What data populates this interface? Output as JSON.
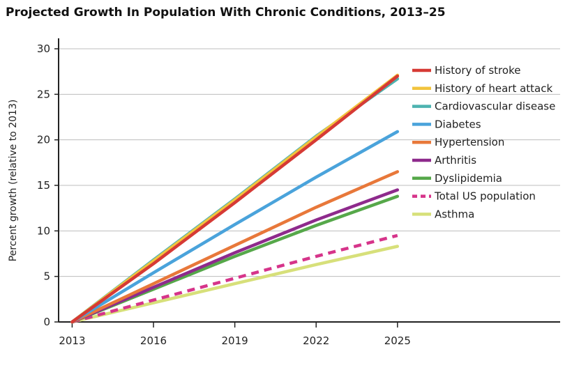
{
  "chart_data": {
    "type": "line",
    "title": "Projected Growth In Population With Chronic Conditions, 2013–25",
    "ylabel": "Percent growth (relative to 2013)",
    "xlabel": "",
    "x_ticks": [
      "2013",
      "2016",
      "2019",
      "2022",
      "2025"
    ],
    "y_ticks": [
      "0",
      "5",
      "10",
      "15",
      "20",
      "25",
      "30"
    ],
    "xlim": [
      2012.5,
      2031
    ],
    "ylim": [
      0,
      30
    ],
    "grid": "horizontal",
    "legend_position": "right",
    "series": [
      {
        "name": "History of stroke",
        "color": "#d63a35",
        "dashed": false,
        "x": [
          2013,
          2016,
          2019,
          2022,
          2025
        ],
        "y": [
          0,
          6.4,
          13.1,
          20.0,
          27.0
        ]
      },
      {
        "name": "History of heart attack",
        "color": "#f2c43d",
        "dashed": false,
        "x": [
          2013,
          2016,
          2019,
          2022,
          2025
        ],
        "y": [
          0,
          6.7,
          13.4,
          20.3,
          27.1
        ]
      },
      {
        "name": "Cardiovascular disease",
        "color": "#4db3b0",
        "dashed": false,
        "x": [
          2013,
          2016,
          2019,
          2022,
          2025
        ],
        "y": [
          0,
          6.8,
          13.5,
          20.4,
          26.7
        ]
      },
      {
        "name": "Diabetes",
        "color": "#4aa3db",
        "dashed": false,
        "x": [
          2013,
          2016,
          2019,
          2022,
          2025
        ],
        "y": [
          0,
          5.4,
          10.7,
          15.9,
          20.9
        ]
      },
      {
        "name": "Hypertension",
        "color": "#e8783a",
        "dashed": false,
        "x": [
          2013,
          2016,
          2019,
          2022,
          2025
        ],
        "y": [
          0,
          4.2,
          8.4,
          12.6,
          16.5
        ]
      },
      {
        "name": "Arthritis",
        "color": "#8e2a8c",
        "dashed": false,
        "x": [
          2013,
          2016,
          2019,
          2022,
          2025
        ],
        "y": [
          0,
          3.8,
          7.6,
          11.2,
          14.5
        ]
      },
      {
        "name": "Dyslipidemia",
        "color": "#56a84a",
        "dashed": false,
        "x": [
          2013,
          2016,
          2019,
          2022,
          2025
        ],
        "y": [
          0,
          3.6,
          7.2,
          10.6,
          13.8
        ]
      },
      {
        "name": "Total US population",
        "color": "#d6348a",
        "dashed": true,
        "x": [
          2013,
          2016,
          2019,
          2022,
          2025
        ],
        "y": [
          0,
          2.4,
          4.8,
          7.2,
          9.5
        ]
      },
      {
        "name": "Asthma",
        "color": "#d7e07a",
        "dashed": false,
        "x": [
          2013,
          2016,
          2019,
          2022,
          2025
        ],
        "y": [
          0,
          2.1,
          4.2,
          6.3,
          8.3
        ]
      }
    ]
  }
}
